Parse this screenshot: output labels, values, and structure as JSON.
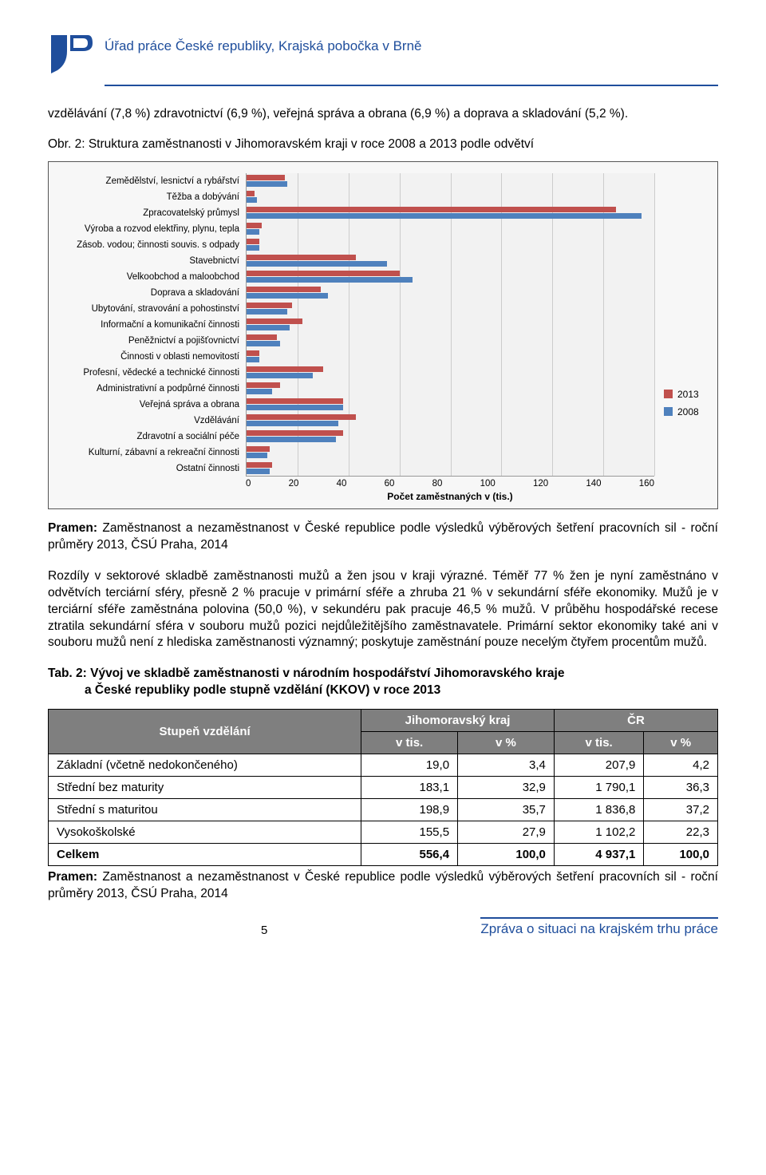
{
  "header": {
    "org_line": "Úřad práce České republiky, Krajská pobočka v Brně"
  },
  "para1": "vzdělávání (7,8 %) zdravotnictví (6,9 %), veřejná správa a obrana (6,9 %) a doprava a skladování (5,2 %).",
  "fig_caption": "Obr. 2: Struktura zaměstnanosti v Jihomoravském kraji v roce 2008 a 2013 podle odvětví",
  "chart": {
    "type": "bar-horizontal-grouped",
    "background_color": "#f7f7f7",
    "plot_bg": "#f2f2f2",
    "grid_color": "#cccccc",
    "axis_color": "#999999",
    "series": [
      {
        "name": "2013",
        "color": "#c0504d"
      },
      {
        "name": "2008",
        "color": "#4f81bd"
      }
    ],
    "xlim": [
      0,
      160
    ],
    "xtick_step": 20,
    "xticks": [
      "0",
      "20",
      "40",
      "60",
      "80",
      "100",
      "120",
      "140",
      "160"
    ],
    "x_title": "Počet zaměstnaných v (tis.)",
    "label_fontsize": 11.5,
    "categories": [
      "Zemědělství, lesnictví a rybářství",
      "Těžba a dobývání",
      "Zpracovatelský průmysl",
      "Výroba a rozvod elektřiny, plynu, tepla",
      "Zásob. vodou; činnosti souvis. s odpady",
      "Stavebnictví",
      "Velkoobchod a maloobchod",
      "Doprava a skladování",
      "Ubytování, stravování a pohostinství",
      "Informační a komunikační činnosti",
      "Peněžnictví a pojišťovnictví",
      "Činnosti v oblasti nemovitostí",
      "Profesní, vědecké a technické činnosti",
      "Administrativní a podpůrné činnosti",
      "Veřejná správa a obrana",
      "Vzdělávání",
      "Zdravotní a sociální péče",
      "Kulturní, zábavní a rekreační činnosti",
      "Ostatní činnosti"
    ],
    "values_2013": [
      15,
      3,
      145,
      6,
      5,
      43,
      60,
      29,
      18,
      22,
      12,
      5,
      30,
      13,
      38,
      43,
      38,
      9,
      10
    ],
    "values_2008": [
      16,
      4,
      155,
      5,
      5,
      55,
      65,
      32,
      16,
      17,
      13,
      5,
      26,
      10,
      38,
      36,
      35,
      8,
      9
    ]
  },
  "source1_prefix": "Pramen:",
  "source1_body": " Zaměstnanost a nezaměstnanost v České republice podle výsledků výběrových šetření pracovních sil -  roční průměry 2013, ČSÚ Praha, 2014",
  "para2": "Rozdíly v sektorové skladbě zaměstnanosti mužů a žen jsou v kraji výrazné. Téměř 77 % žen je nyní zaměstnáno v odvětvích terciární sféry, přesně 2 % pracuje v primární sféře a zhruba 21 % v sekundární sféře ekonomiky. Mužů je v terciární sféře zaměstnána polovina (50,0 %), v sekundéru pak pracuje 46,5 % mužů. V průběhu hospodářské recese ztratila sekundární sféra v souboru mužů pozici nejdůležitějšího zaměstnavatele. Primární sektor ekonomiky také ani v souboru mužů není z hlediska zaměstnanosti významný; poskytuje zaměstnání pouze necelým čtyřem procentům mužů.",
  "tab_caption_l1": "Tab. 2: Vývoj ve skladbě zaměstnanosti v národním hospodářství Jihomoravského kraje",
  "tab_caption_l2": "a České republiky podle stupně vzdělání (KKOV) v roce 2013",
  "table": {
    "header_bg": "#7f7f7f",
    "header_fg": "#ffffff",
    "col_stup": "Stupeň vzdělání",
    "col_jmk": "Jihomoravský kraj",
    "col_cr": "ČR",
    "sub_tis": "v tis.",
    "sub_pct": "v %",
    "rows": [
      {
        "label": "Základní (včetně nedokončeného)",
        "a": "19,0",
        "b": "3,4",
        "c": "207,9",
        "d": "4,2"
      },
      {
        "label": "Střední bez maturity",
        "a": "183,1",
        "b": "32,9",
        "c": "1 790,1",
        "d": "36,3"
      },
      {
        "label": "Střední s maturitou",
        "a": "198,9",
        "b": "35,7",
        "c": "1 836,8",
        "d": "37,2"
      },
      {
        "label": "Vysokoškolské",
        "a": "155,5",
        "b": "27,9",
        "c": "1 102,2",
        "d": "22,3"
      },
      {
        "label": "Celkem",
        "a": "556,4",
        "b": "100,0",
        "c": "4 937,1",
        "d": "100,0"
      }
    ]
  },
  "source2_prefix": "Pramen:",
  "source2_body": " Zaměstnanost a nezaměstnanost v České republice podle výsledků výběrových šetření pracovních sil -  roční průměry 2013, ČSÚ Praha, 2014",
  "footer": {
    "page": "5",
    "text": "Zpráva o situaci na krajském trhu práce"
  }
}
